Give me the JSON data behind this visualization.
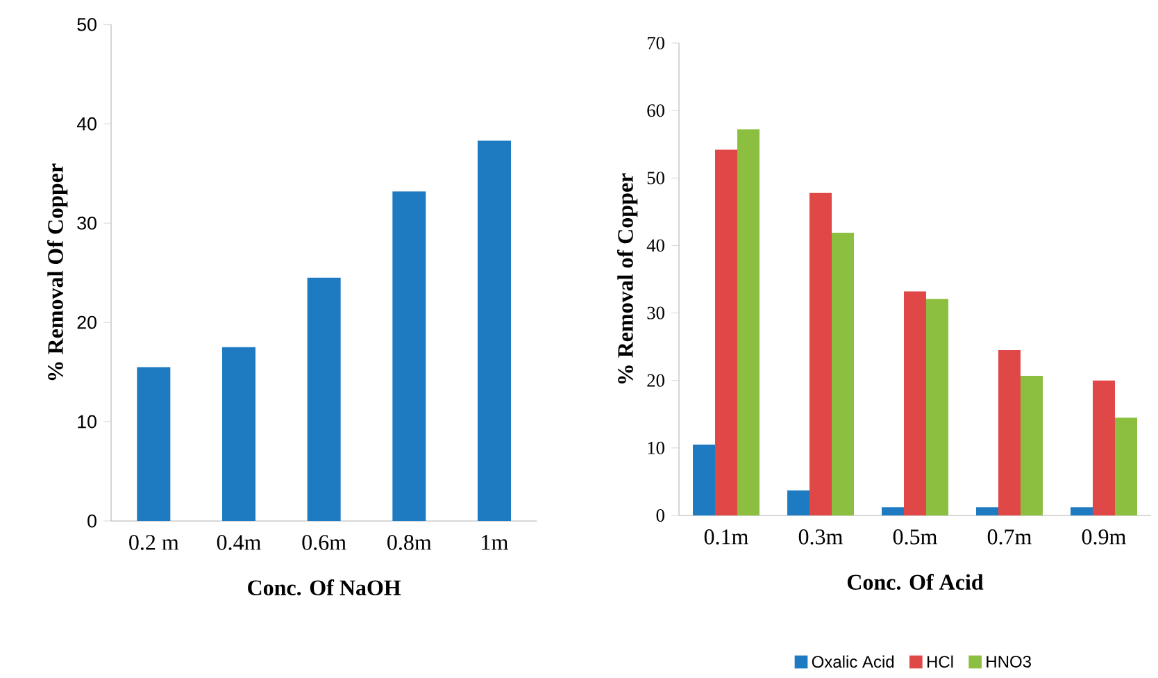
{
  "chart_data": [
    {
      "type": "bar",
      "xlabel": "Conc. Of NaOH",
      "ylabel": "% Removal Of Copper",
      "categories": [
        "0.2 m",
        "0.4m",
        "0.6m",
        "0.8m",
        "1m"
      ],
      "values": [
        15.5,
        17.5,
        24.5,
        33.2,
        38.3
      ],
      "color": "#1f7bc1",
      "ylim": [
        0,
        50
      ],
      "yticks": [
        0,
        10,
        20,
        30,
        40,
        50
      ]
    },
    {
      "type": "bar",
      "xlabel": "Conc. Of Acid",
      "ylabel": "% Removal of Copper",
      "categories": [
        "0.1m",
        "0.3m",
        "0.5m",
        "0.7m",
        "0.9m"
      ],
      "series": [
        {
          "name": "Oxalic Acid",
          "color": "#1f7bc1",
          "values": [
            10.5,
            3.7,
            1.2,
            1.2,
            1.2
          ]
        },
        {
          "name": "HCl",
          "color": "#e04848",
          "values": [
            54.2,
            47.8,
            33.2,
            24.5,
            20.0
          ]
        },
        {
          "name": "HNO3",
          "color": "#8cbf3f",
          "values": [
            57.2,
            41.9,
            32.1,
            20.7,
            14.5
          ]
        }
      ],
      "ylim": [
        0,
        70
      ],
      "yticks": [
        0,
        10,
        20,
        30,
        40,
        50,
        60,
        70
      ],
      "legend": "bottom"
    }
  ]
}
